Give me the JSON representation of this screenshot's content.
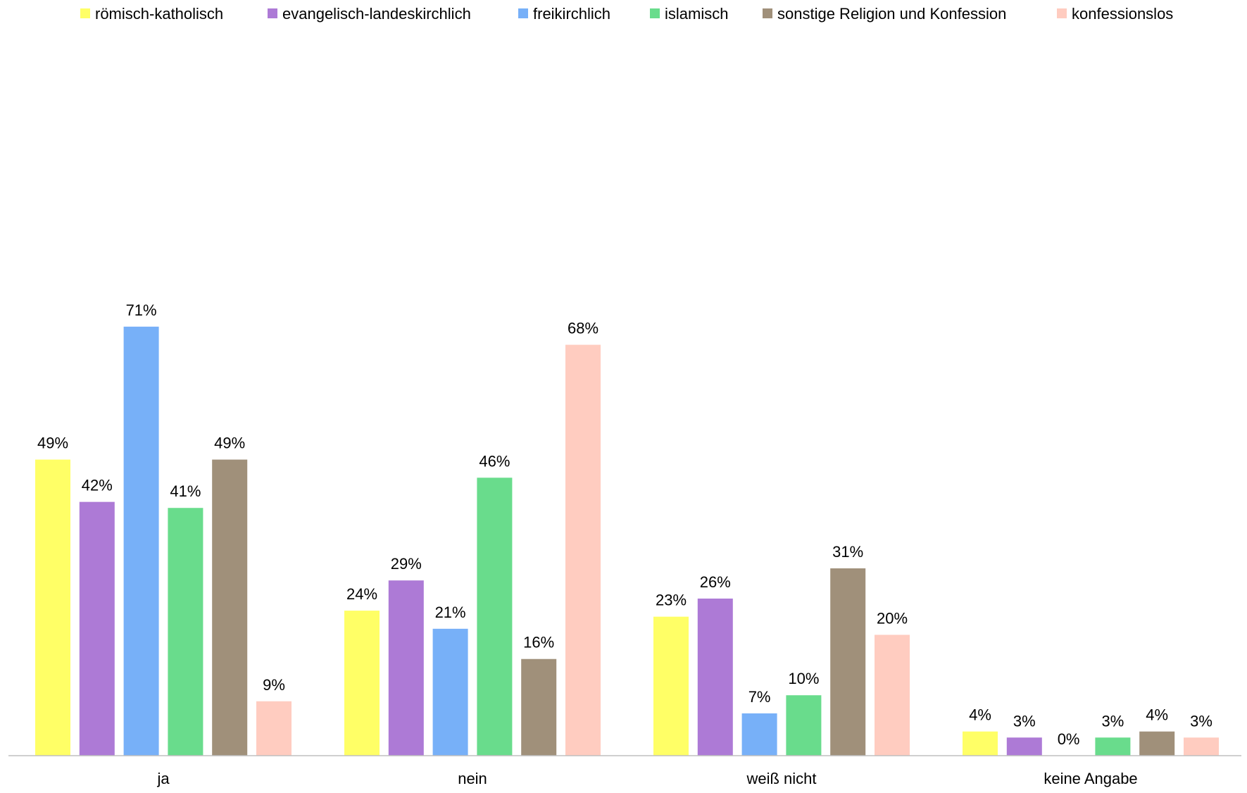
{
  "chart_data": {
    "type": "bar",
    "title": "",
    "xlabel": "",
    "ylabel": "",
    "ylim": [
      0,
      72
    ],
    "grid": false,
    "legend_position": "top",
    "categories": [
      "ja",
      "nein",
      "weiß nicht",
      "keine Angabe"
    ],
    "series": [
      {
        "name": "römisch-katholisch",
        "color": "#ffff66",
        "values": [
          49,
          24,
          23,
          4
        ],
        "labels": [
          "49%",
          "24%",
          "23%",
          "4%"
        ]
      },
      {
        "name": "evangelisch-landeskirchlich",
        "color": "#ad7ad6",
        "values": [
          42,
          29,
          26,
          3
        ],
        "labels": [
          "42%",
          "29%",
          "26%",
          "3%"
        ]
      },
      {
        "name": "freikirchlich",
        "color": "#77b0f8",
        "values": [
          71,
          21,
          7,
          0
        ],
        "labels": [
          "71%",
          "21%",
          "7%",
          "0%"
        ]
      },
      {
        "name": "islamisch",
        "color": "#69dc8c",
        "values": [
          41,
          46,
          10,
          3
        ],
        "labels": [
          "41%",
          "46%",
          "10%",
          "3%"
        ]
      },
      {
        "name": "sonstige Religion und Konfession",
        "color": "#a0907a",
        "values": [
          49,
          16,
          31,
          4
        ],
        "labels": [
          "49%",
          "16%",
          "31%",
          "4%"
        ]
      },
      {
        "name": "konfessionslos",
        "color": "#ffccc0",
        "values": [
          9,
          68,
          20,
          3
        ],
        "labels": [
          "9%",
          "68%",
          "20%",
          "3%"
        ]
      }
    ]
  }
}
